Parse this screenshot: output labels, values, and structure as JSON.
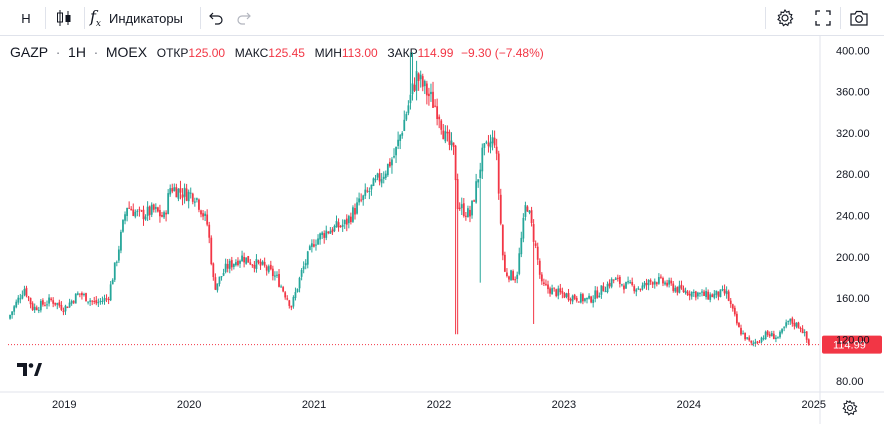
{
  "toolbar": {
    "interval": "H",
    "indicators_label": "Индикаторы"
  },
  "legend": {
    "symbol": "GAZP",
    "interval": "1H",
    "exchange": "MOEX",
    "open_label": "ОТКР",
    "open_value": "125.00",
    "high_label": "МАКС",
    "high_value": "125.45",
    "low_label": "МИН",
    "low_value": "113.00",
    "close_label": "ЗАКР",
    "close_value": "114.99",
    "change": "−9.30 (−7.48%)"
  },
  "colors": {
    "up": "#26a69a",
    "down": "#f23645",
    "price_line": "#f23645"
  },
  "chart_data": {
    "type": "candlestick",
    "title": "GAZP · 1H · MOEX",
    "ylim": [
      73,
      410
    ],
    "yticks": [
      "80.00",
      "120.00",
      "160.00",
      "200.00",
      "240.00",
      "280.00",
      "320.00",
      "360.00",
      "400.00"
    ],
    "xticks": [
      "2019",
      "2020",
      "2021",
      "2022",
      "2023",
      "2024",
      "2025"
    ],
    "last_price": 114.99,
    "last_price_label": "114.99",
    "x_range": [
      2018.55,
      2025.05
    ],
    "path": [
      [
        2018.55,
        140
      ],
      [
        2018.68,
        170
      ],
      [
        2018.75,
        150
      ],
      [
        2018.9,
        158
      ],
      [
        2019.0,
        150
      ],
      [
        2019.12,
        165
      ],
      [
        2019.25,
        155
      ],
      [
        2019.35,
        160
      ],
      [
        2019.42,
        198
      ],
      [
        2019.5,
        250
      ],
      [
        2019.6,
        240
      ],
      [
        2019.72,
        245
      ],
      [
        2019.8,
        238
      ],
      [
        2019.85,
        268
      ],
      [
        2019.95,
        262
      ],
      [
        2020.05,
        260
      ],
      [
        2020.15,
        230
      ],
      [
        2020.2,
        170
      ],
      [
        2020.3,
        190
      ],
      [
        2020.42,
        200
      ],
      [
        2020.5,
        195
      ],
      [
        2020.6,
        190
      ],
      [
        2020.7,
        180
      ],
      [
        2020.82,
        152
      ],
      [
        2020.9,
        185
      ],
      [
        2021.0,
        215
      ],
      [
        2021.1,
        225
      ],
      [
        2021.25,
        232
      ],
      [
        2021.35,
        250
      ],
      [
        2021.45,
        265
      ],
      [
        2021.55,
        280
      ],
      [
        2021.65,
        300
      ],
      [
        2021.75,
        345
      ],
      [
        2021.82,
        375
      ],
      [
        2021.9,
        360
      ],
      [
        2022.0,
        340
      ],
      [
        2022.05,
        315
      ],
      [
        2022.12,
        300
      ],
      [
        2022.15,
        250
      ],
      [
        2022.25,
        240
      ],
      [
        2022.35,
        300
      ],
      [
        2022.45,
        315
      ],
      [
        2022.52,
        185
      ],
      [
        2022.62,
        180
      ],
      [
        2022.7,
        255
      ],
      [
        2022.78,
        205
      ],
      [
        2022.82,
        172
      ],
      [
        2022.95,
        165
      ],
      [
        2023.05,
        162
      ],
      [
        2023.2,
        158
      ],
      [
        2023.3,
        168
      ],
      [
        2023.4,
        178
      ],
      [
        2023.5,
        172
      ],
      [
        2023.62,
        170
      ],
      [
        2023.72,
        178
      ],
      [
        2023.82,
        174
      ],
      [
        2023.92,
        168
      ],
      [
        2024.05,
        165
      ],
      [
        2024.15,
        162
      ],
      [
        2024.3,
        165
      ],
      [
        2024.4,
        130
      ],
      [
        2024.5,
        115
      ],
      [
        2024.62,
        125
      ],
      [
        2024.72,
        122
      ],
      [
        2024.8,
        138
      ],
      [
        2024.9,
        132
      ],
      [
        2024.96,
        114.99
      ]
    ],
    "spikes": [
      {
        "x": 2021.78,
        "high": 398
      },
      {
        "x": 2022.14,
        "low": 125
      },
      {
        "x": 2022.76,
        "low": 135
      },
      {
        "x": 2022.33,
        "low": 175
      }
    ]
  }
}
